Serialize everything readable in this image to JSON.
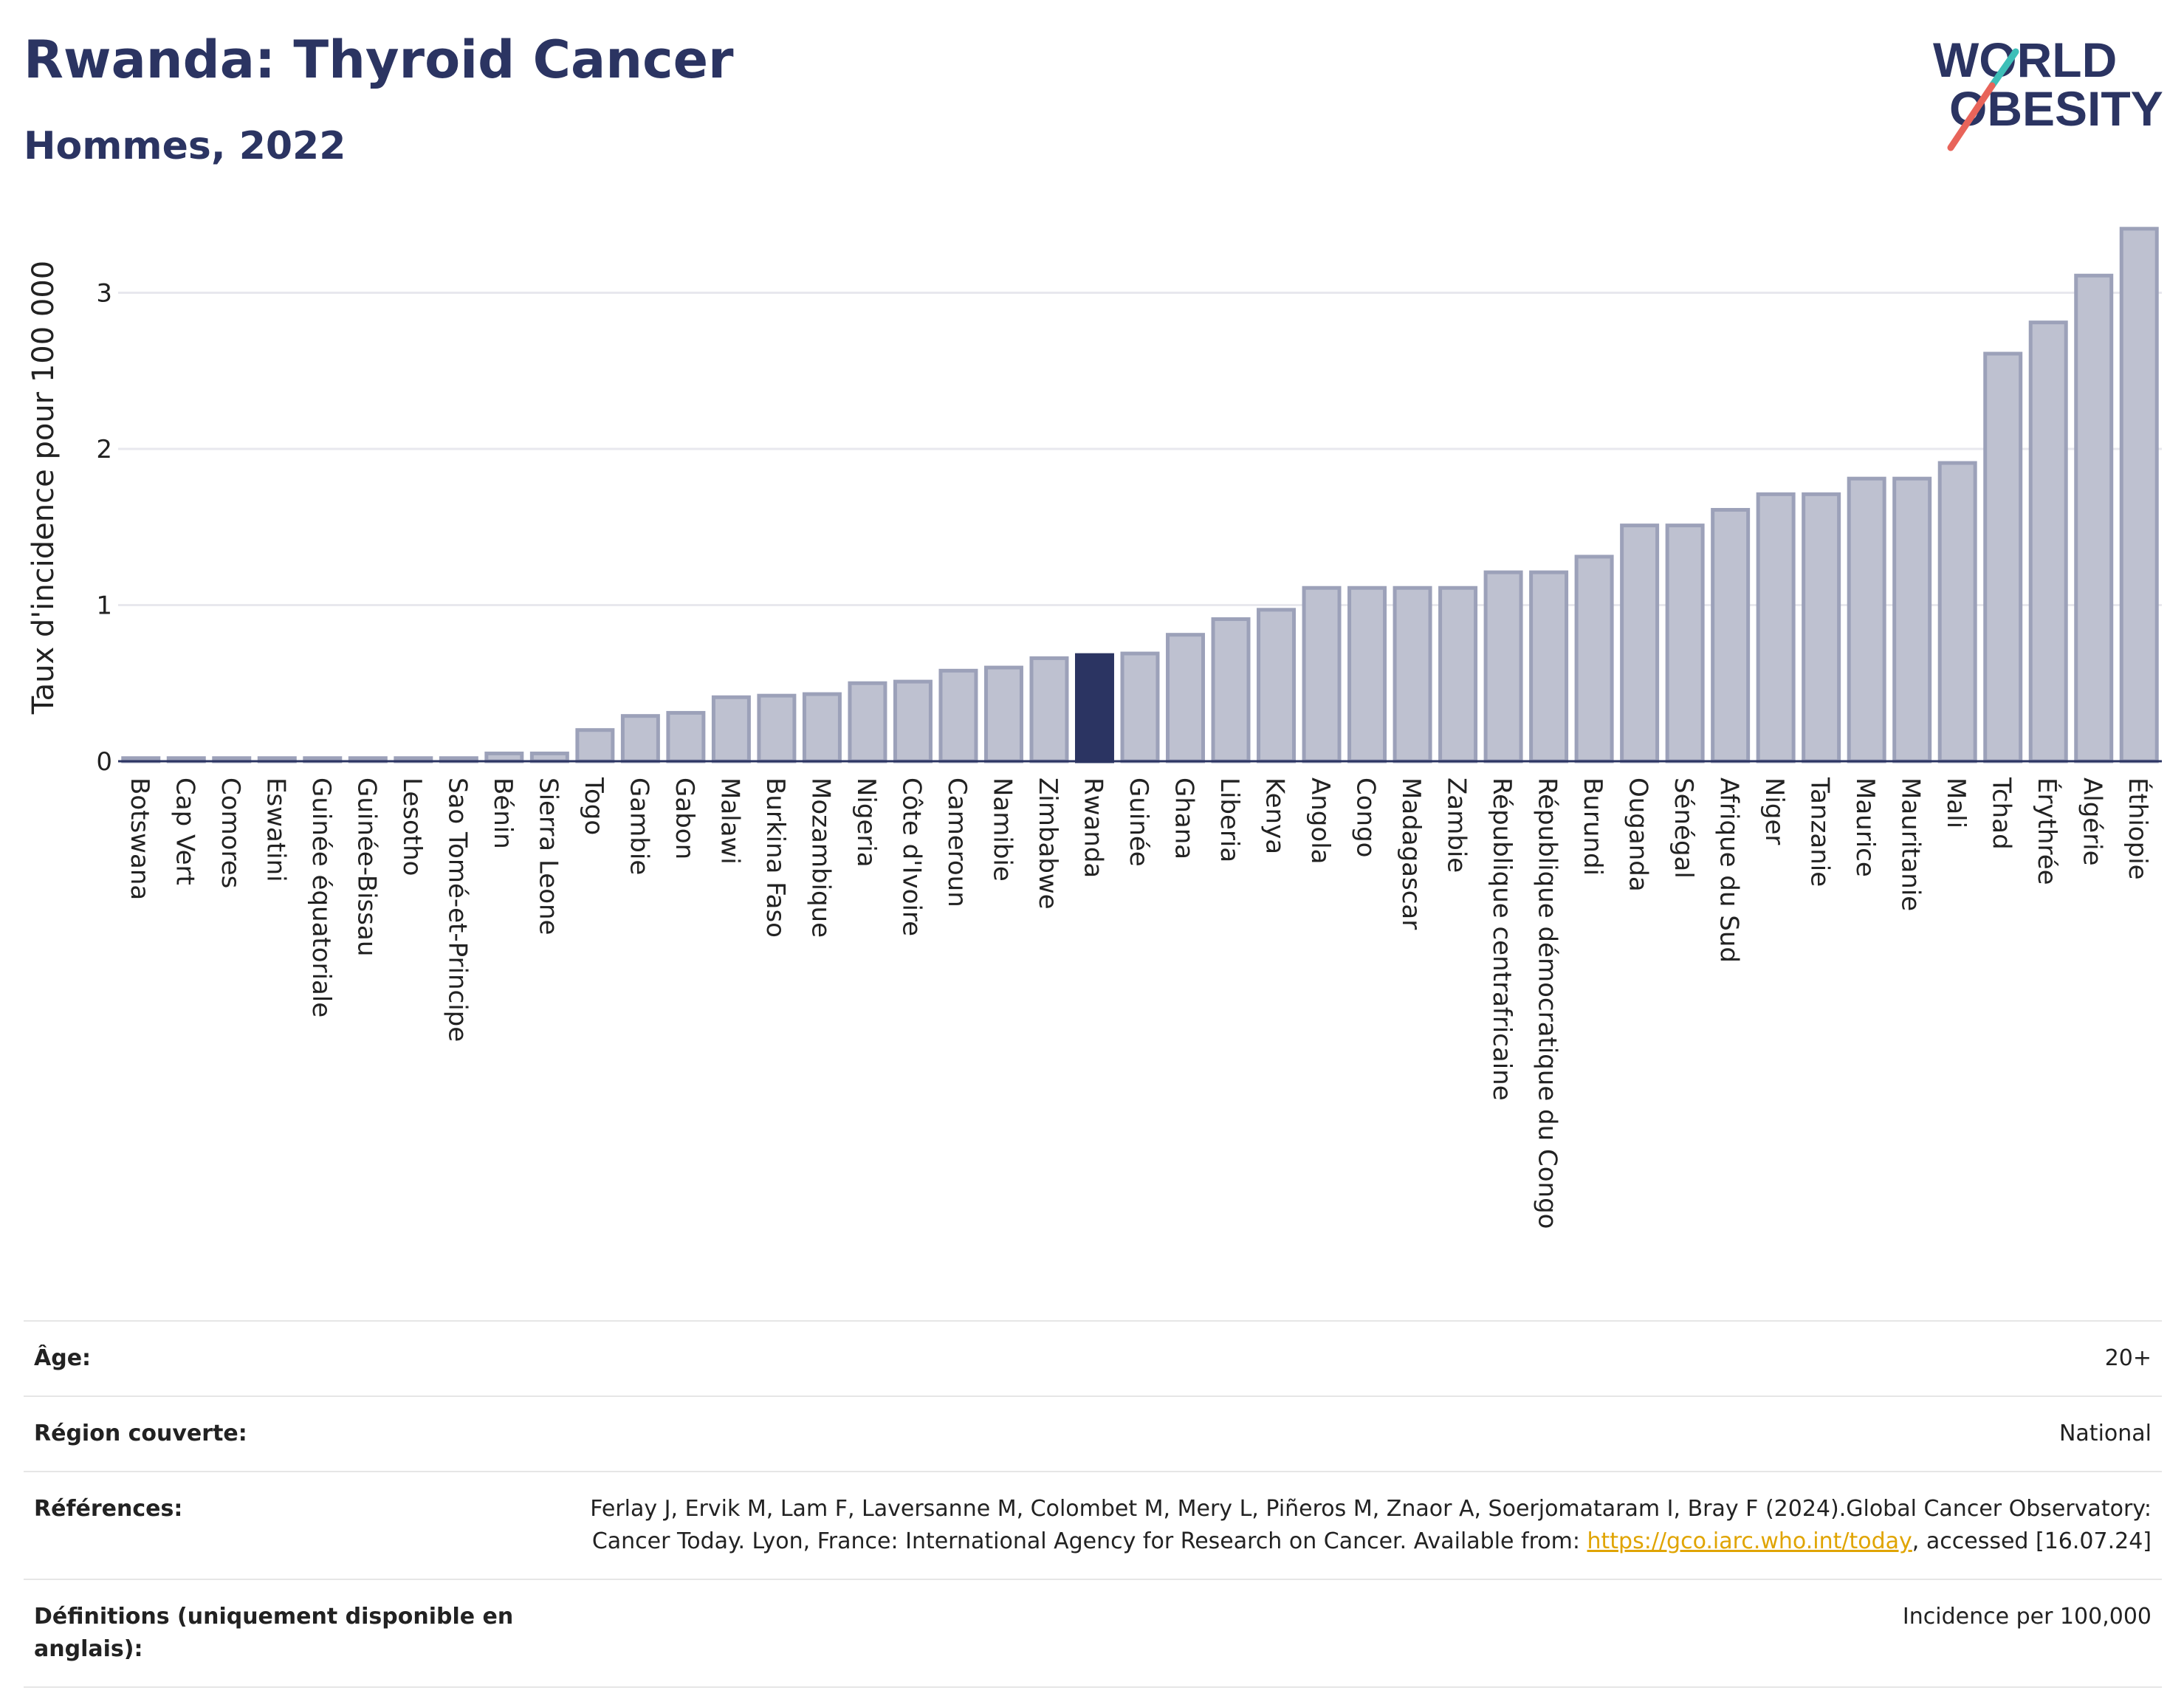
{
  "header": {
    "title": "Rwanda: Thyroid Cancer",
    "subtitle": "Hommes, 2022"
  },
  "logo": {
    "line1": "WORLD",
    "line2": "OBESITY"
  },
  "colors": {
    "highlight": "#2b3462",
    "bar": "#bec1d0",
    "bar_edge": "#9ca1b9",
    "accent_teal": "#3ebfb8",
    "accent_red": "#e8645a",
    "link": "#e0a400"
  },
  "chart_data": {
    "type": "bar",
    "ylabel": "Taux d'incidence pour 100 000",
    "xlabel": "",
    "ylim": [
      0,
      3.5
    ],
    "yticks": [
      0,
      1,
      2,
      3
    ],
    "grid": true,
    "highlight": "Rwanda",
    "categories": [
      "Botswana",
      "Cap Vert",
      "Comores",
      "Eswatini",
      "Guinée équatoriale",
      "Guinée-Bissau",
      "Lesotho",
      "Sao Tomé-et-Principe",
      "Bénin",
      "Sierra Leone",
      "Togo",
      "Gambie",
      "Gabon",
      "Malawi",
      "Burkina Faso",
      "Mozambique",
      "Nigeria",
      "Côte d'Ivoire",
      "Cameroun",
      "Namibie",
      "Zimbabwe",
      "Rwanda",
      "Guinée",
      "Ghana",
      "Liberia",
      "Kenya",
      "Angola",
      "Congo",
      "Madagascar",
      "Zambie",
      "République centrafricaine",
      "République démocratique du Congo",
      "Burundi",
      "Ouganda",
      "Sénégal",
      "Afrique du Sud",
      "Niger",
      "Tanzanie",
      "Maurice",
      "Mauritanie",
      "Mali",
      "Tchad",
      "Érythrée",
      "Algérie",
      "Éthiopie"
    ],
    "values": [
      0.02,
      0.02,
      0.02,
      0.02,
      0.02,
      0.02,
      0.02,
      0.02,
      0.05,
      0.05,
      0.2,
      0.29,
      0.31,
      0.41,
      0.42,
      0.43,
      0.5,
      0.51,
      0.58,
      0.6,
      0.66,
      0.68,
      0.69,
      0.81,
      0.91,
      0.97,
      1.11,
      1.11,
      1.11,
      1.11,
      1.21,
      1.21,
      1.31,
      1.51,
      1.51,
      1.61,
      1.71,
      1.71,
      1.81,
      1.81,
      1.91,
      2.61,
      2.81,
      3.11,
      3.41
    ]
  },
  "info": {
    "age_label": "Âge:",
    "age_value": "20+",
    "region_label": "Région couverte:",
    "region_value": "National",
    "refs_label": "Références:",
    "refs_text": "Ferlay J, Ervik M, Lam F, Laversanne M, Colombet M, Mery L, Piñeros M, Znaor A, Soerjomataram I, Bray F (2024).Global Cancer Observatory: Cancer Today. Lyon, France: International Agency for Research on Cancer. Available from: ",
    "refs_link": "https://gco.iarc.who.int/today",
    "refs_tail": ", accessed [16.07.24]",
    "def_label": "Définitions (uniquement disponible en anglais):",
    "def_value": "Incidence per 100,000"
  }
}
